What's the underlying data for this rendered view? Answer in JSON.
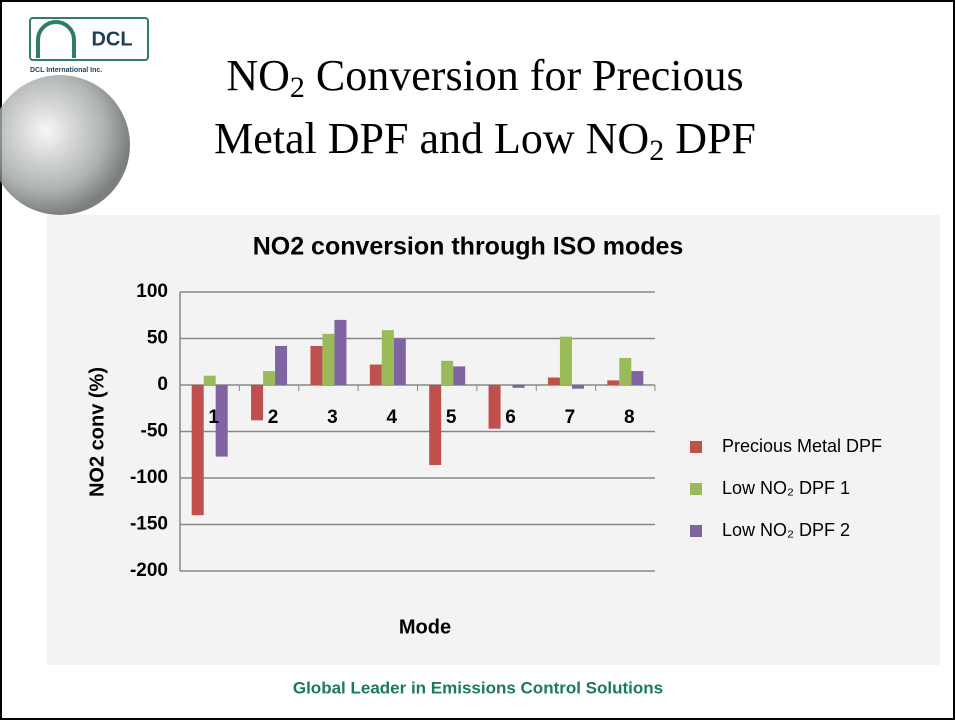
{
  "slide": {
    "logo": "DCL",
    "logo_caption": "DCL International Inc.",
    "title": [
      [
        "NO",
        "2",
        " Conversion for Precious"
      ],
      [
        "Metal DPF and Low NO",
        "2",
        " DPF"
      ]
    ],
    "footer": "Global Leader in Emissions Control Solutions"
  },
  "chart_data": {
    "type": "bar",
    "title": "NO2 conversion through ISO modes",
    "y_label": "NO2 conv (%)",
    "x_label": "Mode",
    "categories": [
      "1",
      "2",
      "3",
      "4",
      "5",
      "6",
      "7",
      "8"
    ],
    "series": [
      {
        "name": "Precious Metal DPF",
        "color": "#c0504d",
        "values": [
          -140,
          -38,
          42,
          22,
          -86,
          -47,
          8,
          5
        ]
      },
      {
        "name": "Low NO₂ DPF 1",
        "color": "#9bbb59",
        "values": [
          10,
          15,
          55,
          59,
          26,
          0,
          52,
          29
        ]
      },
      {
        "name": "Low NO₂ DPF 2",
        "color": "#8064a2",
        "values": [
          -77,
          42,
          70,
          50,
          20,
          -3,
          -4,
          15
        ]
      }
    ],
    "ylim": [
      -200,
      100
    ],
    "yticks": [
      -200,
      -150,
      -100,
      -50,
      0,
      50,
      100
    ],
    "grid": true,
    "legend": "right"
  }
}
